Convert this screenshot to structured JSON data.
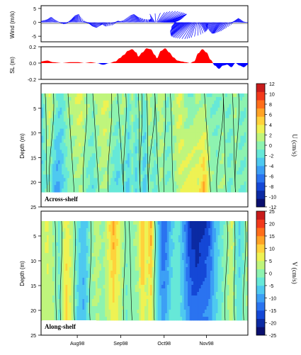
{
  "chart_data": [
    {
      "type": "line",
      "panel": "wind",
      "ylabel": "Wind (m/s)",
      "yticks": [
        "5",
        "0",
        "-5"
      ],
      "ylim": [
        -7,
        6
      ],
      "series_color": "#0000ff",
      "vectors": [
        {
          "t": 0.0,
          "u": 0.3,
          "v": 0.6
        },
        {
          "t": 0.02,
          "u": 0.5,
          "v": 1.0
        },
        {
          "t": 0.04,
          "u": 0.6,
          "v": 2.0
        },
        {
          "t": 0.06,
          "u": 0.4,
          "v": 1.0
        },
        {
          "t": 0.08,
          "u": 0.2,
          "v": 0.3
        },
        {
          "t": 0.1,
          "u": 0.6,
          "v": -0.6
        },
        {
          "t": 0.12,
          "u": 0.4,
          "v": -0.4
        },
        {
          "t": 0.14,
          "u": 0.7,
          "v": 1.4
        },
        {
          "t": 0.16,
          "u": 0.3,
          "v": 2.5
        },
        {
          "t": 0.18,
          "u": 0.1,
          "v": 3.0
        },
        {
          "t": 0.19,
          "u": 0.2,
          "v": 1.8
        },
        {
          "t": 0.2,
          "u": 0.5,
          "v": 0.6
        },
        {
          "t": 0.22,
          "u": 0.8,
          "v": -0.4
        },
        {
          "t": 0.24,
          "u": 0.6,
          "v": -1.5
        },
        {
          "t": 0.26,
          "u": 0.5,
          "v": -2.0
        },
        {
          "t": 0.28,
          "u": 0.3,
          "v": -1.2
        },
        {
          "t": 0.3,
          "u": -0.3,
          "v": -0.8
        },
        {
          "t": 0.32,
          "u": -0.5,
          "v": -1.5
        },
        {
          "t": 0.34,
          "u": 0.5,
          "v": -1.0
        },
        {
          "t": 0.36,
          "u": 0.7,
          "v": 0.5
        },
        {
          "t": 0.38,
          "u": 0.2,
          "v": 0.4
        },
        {
          "t": 0.4,
          "u": -0.3,
          "v": 0.6
        },
        {
          "t": 0.42,
          "u": -0.4,
          "v": 1.5
        },
        {
          "t": 0.44,
          "u": -0.5,
          "v": 2.5
        },
        {
          "t": 0.46,
          "u": -0.7,
          "v": 3.0
        },
        {
          "t": 0.48,
          "u": -0.8,
          "v": 2.0
        },
        {
          "t": 0.5,
          "u": -0.2,
          "v": 1.2
        },
        {
          "t": 0.52,
          "u": 0.3,
          "v": 1.0
        },
        {
          "t": 0.54,
          "u": -0.6,
          "v": 1.2
        },
        {
          "t": 0.55,
          "u": -1.5,
          "v": 3.0
        },
        {
          "t": 0.56,
          "u": 2.0,
          "v": 3.5
        },
        {
          "t": 0.57,
          "u": 3.5,
          "v": 4.0
        },
        {
          "t": 0.58,
          "u": 5.0,
          "v": 4.0
        },
        {
          "t": 0.59,
          "u": 6.0,
          "v": 3.5
        },
        {
          "t": 0.6,
          "u": 6.5,
          "v": 3.0
        },
        {
          "t": 0.61,
          "u": 5.5,
          "v": 2.5
        },
        {
          "t": 0.62,
          "u": 4.0,
          "v": 1.5
        },
        {
          "t": 0.63,
          "u": 2.5,
          "v": 0.8
        },
        {
          "t": 0.64,
          "u": 1.0,
          "v": 0.4
        },
        {
          "t": 0.655,
          "u": -1.5,
          "v": -1.5
        },
        {
          "t": 0.67,
          "u": -2.5,
          "v": -2.5
        },
        {
          "t": 0.68,
          "u": -3.5,
          "v": -3.2
        },
        {
          "t": 0.69,
          "u": -4.0,
          "v": -4.0
        },
        {
          "t": 0.7,
          "u": -4.5,
          "v": -4.5
        },
        {
          "t": 0.71,
          "u": -5.0,
          "v": -5.0
        },
        {
          "t": 0.72,
          "u": -4.8,
          "v": -5.5
        },
        {
          "t": 0.73,
          "u": -4.0,
          "v": -5.8
        },
        {
          "t": 0.74,
          "u": -2.5,
          "v": -6.0
        },
        {
          "t": 0.75,
          "u": -1.5,
          "v": -5.5
        },
        {
          "t": 0.76,
          "u": 0.5,
          "v": -4.5
        },
        {
          "t": 0.77,
          "u": 1.5,
          "v": -3.5
        },
        {
          "t": 0.79,
          "u": 1.0,
          "v": -2.5
        },
        {
          "t": 0.81,
          "u": -0.5,
          "v": -1.5
        },
        {
          "t": 0.83,
          "u": -1.0,
          "v": -3.0
        },
        {
          "t": 0.85,
          "u": -1.5,
          "v": -4.0
        },
        {
          "t": 0.87,
          "u": -2.0,
          "v": -4.0
        },
        {
          "t": 0.89,
          "u": -1.0,
          "v": -3.0
        },
        {
          "t": 0.91,
          "u": 0.5,
          "v": -1.0
        },
        {
          "t": 0.93,
          "u": 1.5,
          "v": 1.5
        },
        {
          "t": 0.95,
          "u": 1.0,
          "v": 1.0
        },
        {
          "t": 0.97,
          "u": 0.6,
          "v": 0.2
        },
        {
          "t": 0.99,
          "u": 0.2,
          "v": 0.0
        }
      ]
    },
    {
      "type": "area",
      "panel": "sea-level",
      "ylabel": "SL (m)",
      "yticks": [
        "0.2",
        "0.0",
        "-0.2"
      ],
      "ylim": [
        -0.2,
        0.2
      ],
      "positive_color": "#ff0000",
      "negative_color": "#0000ff",
      "t": [
        0.0,
        0.03,
        0.06,
        0.1,
        0.14,
        0.18,
        0.21,
        0.24,
        0.27,
        0.3,
        0.33,
        0.36,
        0.38,
        0.4,
        0.42,
        0.44,
        0.46,
        0.47,
        0.49,
        0.51,
        0.53,
        0.55,
        0.56,
        0.58,
        0.6,
        0.62,
        0.64,
        0.66,
        0.68,
        0.7,
        0.72,
        0.74,
        0.76,
        0.78,
        0.8,
        0.82,
        0.84,
        0.86,
        0.88,
        0.9,
        0.92,
        0.94,
        0.96,
        0.98,
        1.0
      ],
      "sl": [
        0.02,
        0.03,
        0.01,
        0.0,
        0.01,
        0.01,
        0.0,
        0.01,
        0.0,
        -0.02,
        0.0,
        0.02,
        0.06,
        0.1,
        0.15,
        0.17,
        0.13,
        0.08,
        0.13,
        0.18,
        0.17,
        0.1,
        0.06,
        0.15,
        0.18,
        0.13,
        0.07,
        0.03,
        0.02,
        0.01,
        0.0,
        0.02,
        0.12,
        0.17,
        0.13,
        0.04,
        -0.03,
        -0.07,
        -0.03,
        -0.02,
        -0.05,
        0.0,
        -0.03,
        -0.05,
        -0.02
      ]
    },
    {
      "type": "heatmap",
      "panel": "across-shelf",
      "label": "Across-shelf",
      "ylabel": "Depth (m)",
      "yticks": [
        "5",
        "10",
        "15",
        "20",
        "25"
      ],
      "ylim": [
        25,
        0
      ],
      "data_depth_range": [
        2,
        22
      ],
      "cbar_label": "U (cm/s)",
      "cbar_ticks": [
        "12",
        "10",
        "8",
        "6",
        "4",
        "2",
        "0",
        "-2",
        "-4",
        "-6",
        "-8",
        "-10",
        "-12"
      ],
      "zlim": [
        -12,
        12
      ],
      "columns": [
        {
          "t": 0.0,
          "top": -3,
          "bottom": -2
        },
        {
          "t": 0.02,
          "top": 0,
          "bottom": -1
        },
        {
          "t": 0.04,
          "top": 3,
          "bottom": -1
        },
        {
          "t": 0.06,
          "top": 1,
          "bottom": -4
        },
        {
          "t": 0.08,
          "top": -1,
          "bottom": -5
        },
        {
          "t": 0.1,
          "top": -2,
          "bottom": -3
        },
        {
          "t": 0.13,
          "top": 1,
          "bottom": -1
        },
        {
          "t": 0.16,
          "top": 2,
          "bottom": 0
        },
        {
          "t": 0.19,
          "top": 3,
          "bottom": 1
        },
        {
          "t": 0.22,
          "top": 1,
          "bottom": -1
        },
        {
          "t": 0.25,
          "top": 0,
          "bottom": -2
        },
        {
          "t": 0.28,
          "top": 2,
          "bottom": 0
        },
        {
          "t": 0.31,
          "top": 3,
          "bottom": 1
        },
        {
          "t": 0.34,
          "top": 1,
          "bottom": -1
        },
        {
          "t": 0.37,
          "top": 0,
          "bottom": -3
        },
        {
          "t": 0.4,
          "top": 2,
          "bottom": -1
        },
        {
          "t": 0.42,
          "top": -2,
          "bottom": -3
        },
        {
          "t": 0.44,
          "top": 1,
          "bottom": -1
        },
        {
          "t": 0.46,
          "top": -1,
          "bottom": -3
        },
        {
          "t": 0.48,
          "top": 1,
          "bottom": 0
        },
        {
          "t": 0.5,
          "top": -2,
          "bottom": -4
        },
        {
          "t": 0.52,
          "top": 2,
          "bottom": 0
        },
        {
          "t": 0.55,
          "top": 0,
          "bottom": -2
        },
        {
          "t": 0.58,
          "top": 2,
          "bottom": 1
        },
        {
          "t": 0.61,
          "top": -1,
          "bottom": -1
        },
        {
          "t": 0.64,
          "top": 1,
          "bottom": 0
        },
        {
          "t": 0.67,
          "top": 3,
          "bottom": 2
        },
        {
          "t": 0.7,
          "top": 0,
          "bottom": 3
        },
        {
          "t": 0.73,
          "top": -1,
          "bottom": 4
        },
        {
          "t": 0.76,
          "top": 1,
          "bottom": 3
        },
        {
          "t": 0.79,
          "top": 0,
          "bottom": 6
        },
        {
          "t": 0.82,
          "top": -1,
          "bottom": 1
        },
        {
          "t": 0.85,
          "top": -1,
          "bottom": 0
        },
        {
          "t": 0.88,
          "top": 0,
          "bottom": 1
        },
        {
          "t": 0.91,
          "top": -1,
          "bottom": -1
        },
        {
          "t": 0.94,
          "top": 1,
          "bottom": 0
        },
        {
          "t": 0.97,
          "top": -1,
          "bottom": -1
        },
        {
          "t": 1.0,
          "top": 0,
          "bottom": 0
        }
      ]
    },
    {
      "type": "heatmap",
      "panel": "along-shelf",
      "label": "Along-shelf",
      "ylabel": "Depth (m)",
      "yticks": [
        "5",
        "10",
        "15",
        "20",
        "25"
      ],
      "ylim": [
        25,
        0
      ],
      "data_depth_range": [
        2,
        22
      ],
      "cbar_label": "V (cm/s)",
      "cbar_ticks": [
        "25",
        "20",
        "15",
        "10",
        "5",
        "0",
        "-5",
        "-10",
        "-15",
        "-20",
        "-25"
      ],
      "zlim": [
        -25,
        25
      ],
      "xticks": [
        "Aug98",
        "Sep98",
        "Oct98",
        "Nov98"
      ],
      "columns": [
        {
          "t": 0.0,
          "top": 3,
          "bottom": 2
        },
        {
          "t": 0.03,
          "top": 6,
          "bottom": 4
        },
        {
          "t": 0.06,
          "top": 1,
          "bottom": 2
        },
        {
          "t": 0.09,
          "top": -3,
          "bottom": -2
        },
        {
          "t": 0.12,
          "top": 7,
          "bottom": 10
        },
        {
          "t": 0.15,
          "top": 3,
          "bottom": 4
        },
        {
          "t": 0.18,
          "top": -4,
          "bottom": -6
        },
        {
          "t": 0.21,
          "top": -8,
          "bottom": -9
        },
        {
          "t": 0.24,
          "top": 0,
          "bottom": 1
        },
        {
          "t": 0.27,
          "top": 3,
          "bottom": 2
        },
        {
          "t": 0.3,
          "top": 1,
          "bottom": 0
        },
        {
          "t": 0.32,
          "top": 5,
          "bottom": 3
        },
        {
          "t": 0.35,
          "top": 13,
          "bottom": 7
        },
        {
          "t": 0.38,
          "top": 6,
          "bottom": 4
        },
        {
          "t": 0.41,
          "top": -1,
          "bottom": -2
        },
        {
          "t": 0.44,
          "top": 1,
          "bottom": 0
        },
        {
          "t": 0.47,
          "top": 3,
          "bottom": 1
        },
        {
          "t": 0.49,
          "top": 13,
          "bottom": 8
        },
        {
          "t": 0.51,
          "top": 5,
          "bottom": 3
        },
        {
          "t": 0.53,
          "top": 14,
          "bottom": 7
        },
        {
          "t": 0.55,
          "top": 0,
          "bottom": -1
        },
        {
          "t": 0.57,
          "top": -9,
          "bottom": -6
        },
        {
          "t": 0.59,
          "top": -16,
          "bottom": -10
        },
        {
          "t": 0.61,
          "top": -12,
          "bottom": -7
        },
        {
          "t": 0.63,
          "top": -6,
          "bottom": -4
        },
        {
          "t": 0.66,
          "top": -3,
          "bottom": -2
        },
        {
          "t": 0.69,
          "top": -10,
          "bottom": -7
        },
        {
          "t": 0.72,
          "top": -19,
          "bottom": -12
        },
        {
          "t": 0.75,
          "top": -22,
          "bottom": -13
        },
        {
          "t": 0.78,
          "top": -20,
          "bottom": -12
        },
        {
          "t": 0.81,
          "top": -17,
          "bottom": -11
        },
        {
          "t": 0.84,
          "top": -9,
          "bottom": -6
        },
        {
          "t": 0.87,
          "top": -3,
          "bottom": -2
        },
        {
          "t": 0.9,
          "top": 0,
          "bottom": 1
        },
        {
          "t": 0.92,
          "top": 6,
          "bottom": 4
        },
        {
          "t": 0.94,
          "top": -2,
          "bottom": -1
        },
        {
          "t": 0.96,
          "top": -6,
          "bottom": -4
        },
        {
          "t": 0.98,
          "top": -2,
          "bottom": 0
        },
        {
          "t": 1.0,
          "top": 3,
          "bottom": 2
        }
      ]
    }
  ],
  "colormap": [
    "#0a0f6e",
    "#0b2aa3",
    "#1447d6",
    "#2a73f0",
    "#3c9ff5",
    "#4ec9f0",
    "#66e8d8",
    "#8df3b0",
    "#bff57c",
    "#eef253",
    "#ffd23c",
    "#ffa326",
    "#ff6e1a",
    "#f2391b",
    "#c81b1b"
  ]
}
